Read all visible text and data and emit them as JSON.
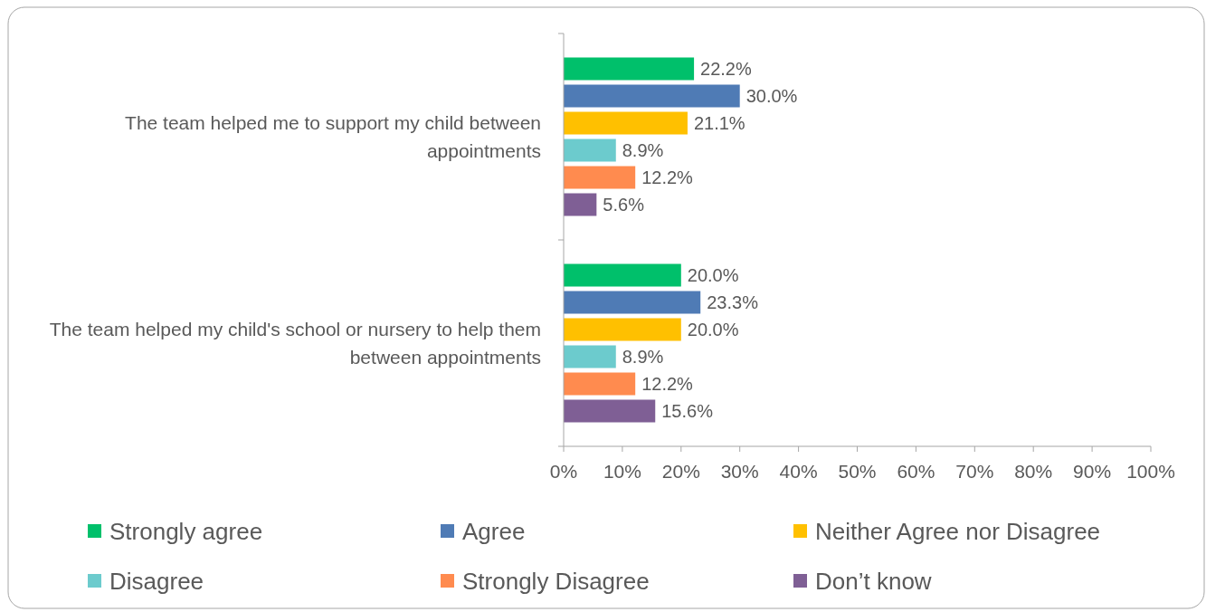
{
  "chart_data": {
    "type": "bar",
    "orientation": "horizontal",
    "categories": [
      "The team helped me to support my child between appointments",
      "The team helped my child's school or nursery to help them between appointments"
    ],
    "series": [
      {
        "name": "Strongly agree",
        "color": "#00c06b",
        "values": [
          22.2,
          20.0
        ],
        "value_labels": [
          "22.2%",
          "20.0%"
        ]
      },
      {
        "name": "Agree",
        "color": "#4f7bb5",
        "values": [
          30.0,
          23.3
        ],
        "value_labels": [
          "30.0%",
          "23.3%"
        ]
      },
      {
        "name": "Neither Agree nor Disagree",
        "color": "#ffc000",
        "values": [
          21.1,
          20.0
        ],
        "value_labels": [
          "21.1%",
          "20.0%"
        ]
      },
      {
        "name": "Disagree",
        "color": "#6ccbcd",
        "values": [
          8.9,
          8.9
        ],
        "value_labels": [
          "8.9%",
          "8.9%"
        ]
      },
      {
        "name": "Strongly Disagree",
        "color": "#ff8b4f",
        "values": [
          12.2,
          12.2
        ],
        "value_labels": [
          "12.2%",
          "12.2%"
        ]
      },
      {
        "name": "Don’t know",
        "color": "#7f5f95",
        "values": [
          5.6,
          15.6
        ],
        "value_labels": [
          "5.6%",
          "15.6%"
        ]
      }
    ],
    "xlim": [
      0,
      100
    ],
    "xticks": [
      {
        "value": 0,
        "label": "0%"
      },
      {
        "value": 10,
        "label": "10%"
      },
      {
        "value": 20,
        "label": "20%"
      },
      {
        "value": 30,
        "label": "30%"
      },
      {
        "value": 40,
        "label": "40%"
      },
      {
        "value": 50,
        "label": "50%"
      },
      {
        "value": 60,
        "label": "60%"
      },
      {
        "value": 70,
        "label": "70%"
      },
      {
        "value": 80,
        "label": "80%"
      },
      {
        "value": 90,
        "label": "90%"
      },
      {
        "value": 100,
        "label": "100%"
      }
    ],
    "grid": false,
    "legend": "bottom"
  }
}
